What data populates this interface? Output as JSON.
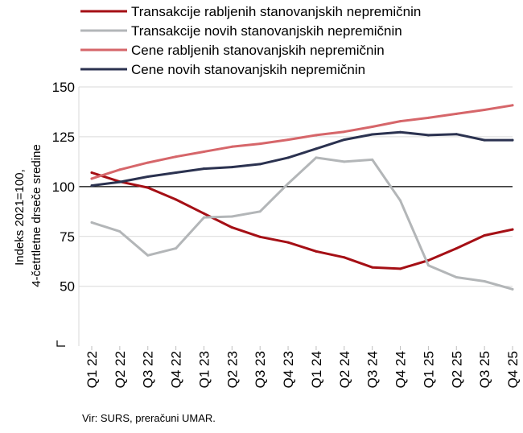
{
  "chart_data": {
    "type": "line",
    "categories": [
      "Q1 22",
      "Q2 22",
      "Q3 22",
      "Q4 22",
      "Q1 23",
      "Q2 23",
      "Q3 23",
      "Q4 23",
      "Q1 24",
      "Q2 24",
      "Q3 24",
      "Q4 24",
      "Q1 25",
      "Q2 25",
      "Q3 25",
      "Q4 25"
    ],
    "series": [
      {
        "name": "Transakcije rabljenih stanovanjskih nepremičnin",
        "color": "#a50f15",
        "values": [
          107.0,
          102.5,
          99.5,
          93.5,
          86.5,
          79.5,
          74.8,
          72.0,
          67.5,
          64.5,
          59.5,
          58.8,
          63.0,
          69.0,
          75.5,
          78.5
        ]
      },
      {
        "name": "Transakcije novih stanovanjskih nepremičnin",
        "color": "#b3b6b8",
        "values": [
          82.0,
          77.5,
          65.5,
          69.0,
          84.5,
          85.0,
          87.5,
          101.5,
          114.5,
          112.5,
          113.5,
          93.0,
          60.5,
          54.5,
          52.5,
          48.5
        ]
      },
      {
        "name": "Cene rabljenih stanovanjskih nepremičnin",
        "color": "#d6666a",
        "values": [
          104.0,
          108.5,
          112.0,
          115.0,
          117.5,
          120.0,
          121.5,
          123.5,
          125.8,
          127.5,
          130.0,
          132.8,
          134.5,
          136.5,
          138.5,
          140.8
        ]
      },
      {
        "name": "Cene novih stanovanjskih nepremičnin",
        "color": "#2b3250",
        "values": [
          100.5,
          102.3,
          105.0,
          107.0,
          109.0,
          109.8,
          111.3,
          114.5,
          119.0,
          123.5,
          126.2,
          127.3,
          125.8,
          126.3,
          123.3,
          123.3
        ]
      }
    ],
    "ylabel_line1": "Indeks 2021=100,",
    "ylabel_line2": "4-četrtletne drseče sredine",
    "ylim": [
      20,
      150
    ],
    "yticks": [
      50,
      75,
      100,
      125,
      150
    ],
    "reference_line": 100,
    "grid": true,
    "legend_position": "top",
    "source": "Vir: SURS, preračuni UMAR."
  }
}
